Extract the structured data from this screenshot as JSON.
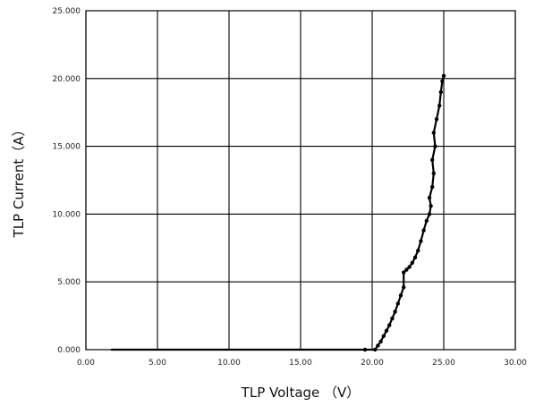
{
  "chart_data": {
    "type": "scatter",
    "title": "",
    "xlabel": "TLP Voltage （V）",
    "ylabel": "TLP Current（A）",
    "xlim": [
      0,
      30
    ],
    "ylim": [
      0,
      25
    ],
    "xticks": [
      0,
      5,
      10,
      15,
      20,
      25,
      30
    ],
    "yticks": [
      0,
      5,
      10,
      15,
      20,
      25
    ],
    "xtick_labels": [
      "0.00",
      "5.00",
      "10.00",
      "15.00",
      "20.00",
      "25.00",
      "30.00"
    ],
    "ytick_labels": [
      "0.000",
      "5.000",
      "10.000",
      "15.000",
      "20.000",
      "25.000"
    ],
    "grid": true,
    "legend": false,
    "series": [
      {
        "color": "#000000",
        "x": [
          1.8,
          3.0,
          5.0,
          7.5,
          10.0,
          12.5,
          15.0,
          17.5,
          19.5,
          20.2,
          20.4,
          20.6,
          20.8,
          21.0,
          21.2,
          21.4,
          21.6,
          21.8,
          22.0,
          22.2,
          22.2,
          22.4,
          22.6,
          22.8,
          23.0,
          23.2,
          23.4,
          23.6,
          23.8,
          24.0,
          24.1,
          24.0,
          24.2,
          24.3,
          24.2,
          24.4,
          24.3,
          24.5,
          24.7,
          24.8,
          24.9,
          25.0
        ],
        "y": [
          0.0,
          0.0,
          0.0,
          0.0,
          0.0,
          0.0,
          0.0,
          0.0,
          0.0,
          0.0,
          0.3,
          0.6,
          1.0,
          1.4,
          1.8,
          2.3,
          2.8,
          3.4,
          4.0,
          4.6,
          5.7,
          5.9,
          6.1,
          6.4,
          6.8,
          7.3,
          8.0,
          8.8,
          9.5,
          10.0,
          10.6,
          11.2,
          12.0,
          13.0,
          14.0,
          15.0,
          16.0,
          17.0,
          18.0,
          19.0,
          19.8,
          20.2
        ]
      }
    ]
  }
}
